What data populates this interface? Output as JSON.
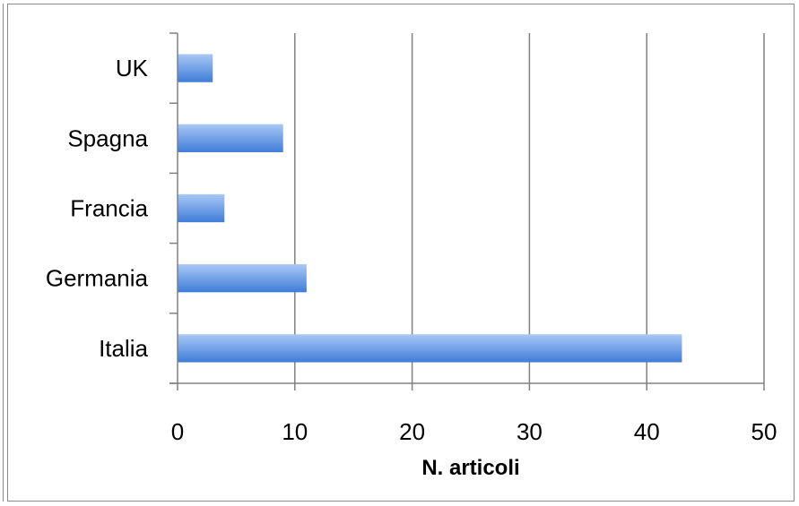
{
  "chart_data": {
    "type": "bar",
    "orientation": "horizontal",
    "categories": [
      "UK",
      "Spagna",
      "Francia",
      "Germania",
      "Italia"
    ],
    "values": [
      3,
      9,
      4,
      11,
      43
    ],
    "xlabel": "N. articoli",
    "ylabel": "",
    "xlim": [
      0,
      50
    ],
    "xticks": [
      "0",
      "10",
      "20",
      "30",
      "40",
      "50"
    ],
    "grid": "vertical",
    "legend": "none",
    "colors": {
      "bar_light": "#a9c8f5",
      "bar_dark": "#3f7cd8",
      "grid": "#808080",
      "axis": "#808080"
    }
  }
}
